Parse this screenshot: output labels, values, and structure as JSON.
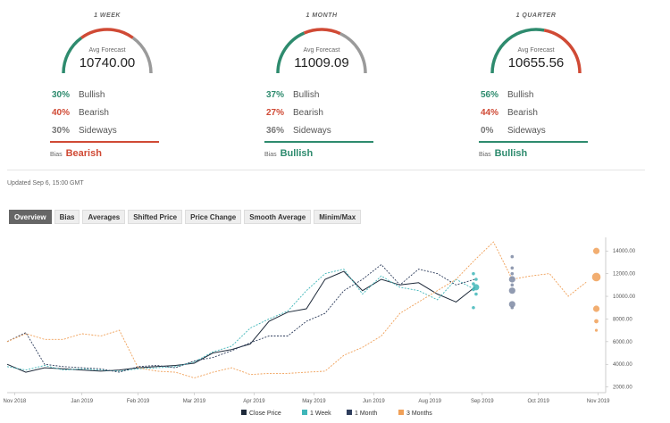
{
  "colors": {
    "bullish": "#2e8b6e",
    "bearish": "#d04a35",
    "neutral": "#999999",
    "close": "#1e2a3a",
    "one_week": "#3fb6b9",
    "one_month": "#2e3d5c",
    "three_months": "#f0a058",
    "gauge_grey": "#9a9a9a"
  },
  "gauges": [
    {
      "title": "1 WEEK",
      "caption": "Avg Forecast",
      "value": "10740.00",
      "bullish_pct": "30%",
      "bullish_label": "Bullish",
      "bearish_pct": "40%",
      "bearish_label": "Bearish",
      "sideways_pct": "30%",
      "sideways_label": "Sideways",
      "bias_label": "Bias",
      "bias_value": "Bearish",
      "bias_type": "bearish",
      "shares": [
        0.3,
        0.4,
        0.3
      ]
    },
    {
      "title": "1 MONTH",
      "caption": "Avg Forecast",
      "value": "11009.09",
      "bullish_pct": "37%",
      "bullish_label": "Bullish",
      "bearish_pct": "27%",
      "bearish_label": "Bearish",
      "sideways_pct": "36%",
      "sideways_label": "Sideways",
      "bias_label": "Bias",
      "bias_value": "Bullish",
      "bias_type": "bullish",
      "shares": [
        0.37,
        0.27,
        0.36
      ]
    },
    {
      "title": "1 QUARTER",
      "caption": "Avg Forecast",
      "value": "10655.56",
      "bullish_pct": "56%",
      "bullish_label": "Bullish",
      "bearish_pct": "44%",
      "bearish_label": "Bearish",
      "sideways_pct": "0%",
      "sideways_label": "Sideways",
      "bias_label": "Bias",
      "bias_value": "Bullish",
      "bias_type": "bullish",
      "shares": [
        0.56,
        0.44,
        0.0
      ]
    }
  ],
  "updated": "Updated Sep 6, 15:00 GMT",
  "tabs": [
    "Overview",
    "Bias",
    "Averages",
    "Shifted Price",
    "Price Change",
    "Smooth Average",
    "Minim/Max"
  ],
  "active_tab": 0,
  "chart_data": {
    "type": "line",
    "x_ticks": [
      "Nov 2018",
      "Jan 2019",
      "Feb 2019",
      "Mar 2019",
      "Apr 2019",
      "May 2019",
      "Jun 2019",
      "Aug 2019",
      "Sep 2019",
      "Oct 2019",
      "Nov 2019"
    ],
    "y_ticks": [
      "2000.00",
      "4000.00",
      "6000.00",
      "8000.00",
      "10000.00",
      "12000.00",
      "14000.00"
    ],
    "ylim": [
      1500,
      15200
    ],
    "xlim": [
      0,
      64
    ],
    "legend_position": "bottom",
    "series": [
      {
        "name": "Close Price",
        "key": "close",
        "x": [
          0,
          2,
          4,
          6,
          8,
          10,
          12,
          14,
          16,
          18,
          20,
          22,
          24,
          26,
          28,
          30,
          32,
          34,
          36,
          38,
          40,
          42,
          44,
          46,
          48,
          50
        ],
        "y": [
          4000,
          3300,
          3700,
          3600,
          3500,
          3400,
          3500,
          3700,
          3800,
          3900,
          4100,
          5000,
          5300,
          5800,
          7800,
          8600,
          8900,
          11500,
          12200,
          10500,
          11500,
          11000,
          11200,
          10200,
          9500,
          10800
        ]
      },
      {
        "name": "1 Week",
        "key": "one_week",
        "x": [
          0,
          2,
          4,
          6,
          8,
          10,
          12,
          14,
          16,
          18,
          20,
          22,
          24,
          26,
          28,
          30,
          32,
          34,
          36,
          38,
          40,
          42,
          44,
          46,
          48,
          50
        ],
        "y": [
          3800,
          3500,
          3900,
          3500,
          3600,
          3500,
          3400,
          3600,
          3700,
          3800,
          4200,
          5100,
          5600,
          7200,
          8000,
          8700,
          10500,
          12000,
          12400,
          10200,
          11800,
          10800,
          10500,
          9700,
          11500,
          10600
        ]
      },
      {
        "name": "1 Month",
        "key": "one_month",
        "x": [
          0,
          2,
          4,
          6,
          8,
          10,
          12,
          14,
          16,
          18,
          20,
          22,
          24,
          26,
          28,
          30,
          32,
          34,
          36,
          38,
          40,
          42,
          44,
          46,
          48,
          50
        ],
        "y": [
          6000,
          6800,
          4000,
          3800,
          3700,
          3600,
          3300,
          3800,
          3900,
          3700,
          4300,
          4600,
          5200,
          5900,
          6500,
          6500,
          7800,
          8500,
          10500,
          11500,
          12800,
          11000,
          12400,
          12000,
          11000,
          11500
        ]
      },
      {
        "name": "3 Months",
        "key": "three_months",
        "x": [
          0,
          2,
          4,
          6,
          8,
          10,
          12,
          14,
          16,
          18,
          20,
          22,
          24,
          26,
          28,
          30,
          32,
          34,
          36,
          38,
          40,
          42,
          44,
          46,
          48,
          50,
          52,
          54,
          56,
          58,
          60,
          62
        ],
        "y": [
          6000,
          6700,
          6200,
          6200,
          6700,
          6500,
          7000,
          3700,
          3400,
          3300,
          2800,
          3300,
          3700,
          3100,
          3200,
          3200,
          3300,
          3400,
          4800,
          5500,
          6500,
          8500,
          9500,
          10500,
          11500,
          13200,
          14800,
          11500,
          11800,
          12000,
          10000,
          11300
        ]
      }
    ],
    "forecast_points": {
      "one_week_x": 50,
      "one_week": [
        9000,
        10200,
        10600,
        10800,
        11100,
        11500,
        12000
      ],
      "one_month_x": 54,
      "one_month": [
        9000,
        9300,
        10500,
        11000,
        11500,
        12000,
        12500,
        13500
      ],
      "three_months_x": 63,
      "three_months": [
        7000,
        7800,
        8900,
        11700,
        14000
      ]
    }
  }
}
